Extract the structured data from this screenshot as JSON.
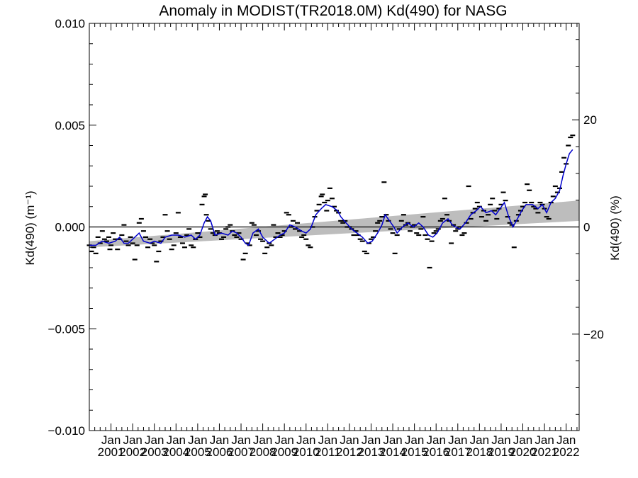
{
  "chart_data": {
    "type": "line",
    "title": "Anomaly in MODIST(TR2018.0M) Kd(490) for NASG",
    "ylabel": "Kd(490) (m⁻¹)",
    "y2label": "Kd(490) (%)",
    "ylim": [
      -0.01,
      0.01
    ],
    "y2lim": [
      -38,
      38
    ],
    "xlim": [
      2000.0,
      2022.6
    ],
    "grid": false,
    "y_ticks": [
      {
        "value": -0.01,
        "label": "−0.010"
      },
      {
        "value": -0.005,
        "label": "−0.005"
      },
      {
        "value": 0.0,
        "label": "0.000"
      },
      {
        "value": 0.005,
        "label": "0.005"
      },
      {
        "value": 0.01,
        "label": "0.010"
      }
    ],
    "y2_ticks": [
      {
        "value": -20,
        "label": "−20"
      },
      {
        "value": 0,
        "label": "0"
      },
      {
        "value": 20,
        "label": "20"
      }
    ],
    "x_ticks": [
      {
        "x": 2001.0,
        "month": "Jan",
        "year": "2001"
      },
      {
        "x": 2002.0,
        "month": "Jan",
        "year": "2002"
      },
      {
        "x": 2003.0,
        "month": "Jan",
        "year": "2003"
      },
      {
        "x": 2004.0,
        "month": "Jan",
        "year": "2004"
      },
      {
        "x": 2005.0,
        "month": "Jan",
        "year": "2005"
      },
      {
        "x": 2006.0,
        "month": "Jan",
        "year": "2006"
      },
      {
        "x": 2007.0,
        "month": "Jan",
        "year": "2007"
      },
      {
        "x": 2008.0,
        "month": "Jan",
        "year": "2008"
      },
      {
        "x": 2009.0,
        "month": "Jan",
        "year": "2009"
      },
      {
        "x": 2010.0,
        "month": "Jan",
        "year": "2010"
      },
      {
        "x": 2011.0,
        "month": "Jan",
        "year": "2011"
      },
      {
        "x": 2012.0,
        "month": "Jan",
        "year": "2012"
      },
      {
        "x": 2013.0,
        "month": "Jan",
        "year": "2013"
      },
      {
        "x": 2014.0,
        "month": "Jan",
        "year": "2014"
      },
      {
        "x": 2015.0,
        "month": "Jan",
        "year": "2015"
      },
      {
        "x": 2016.0,
        "month": "Jan",
        "year": "2016"
      },
      {
        "x": 2017.0,
        "month": "Jan",
        "year": "2017"
      },
      {
        "x": 2018.0,
        "month": "Jan",
        "year": "2018"
      },
      {
        "x": 2019.0,
        "month": "Jan",
        "year": "2019"
      },
      {
        "x": 2020.0,
        "month": "Jan",
        "year": "2020"
      },
      {
        "x": 2021.0,
        "month": "Jan",
        "year": "2021"
      },
      {
        "x": 2022.0,
        "month": "Jan",
        "year": "2022"
      }
    ],
    "trend_band": {
      "x": [
        2000.0,
        2022.6
      ],
      "upper": [
        -0.0007,
        0.0013
      ],
      "lower": [
        -0.001,
        0.0003
      ]
    },
    "smoothed_series": {
      "color": "#0000cc",
      "points": [
        [
          2000.0,
          -0.0009
        ],
        [
          2000.3,
          -0.0009
        ],
        [
          2000.6,
          -0.0007
        ],
        [
          2000.9,
          -0.0008
        ],
        [
          2001.2,
          -0.0007
        ],
        [
          2001.4,
          -0.0005
        ],
        [
          2001.6,
          -0.0008
        ],
        [
          2001.8,
          -0.0008
        ],
        [
          2002.1,
          -0.0005
        ],
        [
          2002.3,
          -0.0003
        ],
        [
          2002.5,
          -0.0007
        ],
        [
          2002.8,
          -0.0008
        ],
        [
          2003.0,
          -0.0007
        ],
        [
          2003.3,
          -0.0008
        ],
        [
          2003.5,
          -0.0005
        ],
        [
          2003.8,
          -0.0004
        ],
        [
          2004.1,
          -0.0004
        ],
        [
          2004.4,
          -0.0005
        ],
        [
          2004.7,
          -0.0004
        ],
        [
          2004.9,
          -0.0006
        ],
        [
          2005.1,
          -0.0004
        ],
        [
          2005.3,
          0.0002
        ],
        [
          2005.45,
          0.0005
        ],
        [
          2005.6,
          0.0003
        ],
        [
          2005.8,
          -0.0004
        ],
        [
          2006.1,
          -0.0003
        ],
        [
          2006.4,
          -0.0004
        ],
        [
          2006.6,
          -0.0002
        ],
        [
          2006.8,
          -0.0003
        ],
        [
          2007.0,
          -0.0005
        ],
        [
          2007.2,
          -0.0008
        ],
        [
          2007.35,
          -0.0009
        ],
        [
          2007.55,
          -0.0003
        ],
        [
          2007.8,
          -0.0001
        ],
        [
          2008.0,
          -0.0005
        ],
        [
          2008.3,
          -0.0008
        ],
        [
          2008.55,
          -0.0006
        ],
        [
          2008.8,
          -0.0004
        ],
        [
          2009.0,
          -0.0003
        ],
        [
          2009.25,
          0.0001
        ],
        [
          2009.5,
          0.0
        ],
        [
          2009.8,
          -0.0002
        ],
        [
          2010.0,
          -0.0003
        ],
        [
          2010.2,
          -0.0001
        ],
        [
          2010.45,
          0.0006
        ],
        [
          2010.7,
          0.0009
        ],
        [
          2010.9,
          0.0011
        ],
        [
          2011.2,
          0.001
        ],
        [
          2011.45,
          0.0008
        ],
        [
          2011.6,
          0.0005
        ],
        [
          2011.85,
          0.0002
        ],
        [
          2012.1,
          -0.0001
        ],
        [
          2012.35,
          -0.0003
        ],
        [
          2012.6,
          -0.0005
        ],
        [
          2012.85,
          -0.0008
        ],
        [
          2013.05,
          -0.0007
        ],
        [
          2013.3,
          -0.0003
        ],
        [
          2013.5,
          0.0001
        ],
        [
          2013.65,
          0.0006
        ],
        [
          2013.85,
          0.0003
        ],
        [
          2014.05,
          0.0
        ],
        [
          2014.2,
          -0.0003
        ],
        [
          2014.45,
          0.0
        ],
        [
          2014.7,
          0.0002
        ],
        [
          2014.95,
          0.0
        ],
        [
          2015.2,
          0.0002
        ],
        [
          2015.4,
          0.0
        ],
        [
          2015.65,
          -0.0004
        ],
        [
          2015.85,
          -0.0005
        ],
        [
          2016.05,
          -0.0003
        ],
        [
          2016.3,
          0.0002
        ],
        [
          2016.55,
          0.0004
        ],
        [
          2016.75,
          0.0001
        ],
        [
          2016.9,
          0.0
        ],
        [
          2017.1,
          -0.0001
        ],
        [
          2017.35,
          0.0002
        ],
        [
          2017.6,
          0.0006
        ],
        [
          2017.85,
          0.0008
        ],
        [
          2018.05,
          0.001
        ],
        [
          2018.3,
          0.0007
        ],
        [
          2018.55,
          0.0008
        ],
        [
          2018.75,
          0.0006
        ],
        [
          2018.95,
          0.0009
        ],
        [
          2019.15,
          0.0012
        ],
        [
          2019.35,
          0.0005
        ],
        [
          2019.55,
          0.0
        ],
        [
          2019.7,
          0.0003
        ],
        [
          2019.95,
          0.0008
        ],
        [
          2020.15,
          0.0011
        ],
        [
          2020.45,
          0.0011
        ],
        [
          2020.7,
          0.0009
        ],
        [
          2020.9,
          0.0011
        ],
        [
          2021.1,
          0.0007
        ],
        [
          2021.3,
          0.0012
        ],
        [
          2021.5,
          0.0014
        ],
        [
          2021.7,
          0.0018
        ],
        [
          2021.85,
          0.0025
        ],
        [
          2022.0,
          0.0031
        ],
        [
          2022.15,
          0.0036
        ],
        [
          2022.3,
          0.0038
        ]
      ]
    },
    "monthly_points": [
      [
        2000.0,
        -0.0009
      ],
      [
        2000.1,
        -0.0012
      ],
      [
        2000.2,
        -0.001
      ],
      [
        2000.3,
        -0.0013
      ],
      [
        2000.4,
        -0.0005
      ],
      [
        2000.5,
        -0.0008
      ],
      [
        2000.6,
        -0.0002
      ],
      [
        2000.7,
        -0.0006
      ],
      [
        2000.8,
        -0.0007
      ],
      [
        2000.9,
        -0.0005
      ],
      [
        2000.95,
        -0.0011
      ],
      [
        2001.0,
        -0.0009
      ],
      [
        2001.1,
        -0.0003
      ],
      [
        2001.2,
        -0.0006
      ],
      [
        2001.3,
        -0.0011
      ],
      [
        2001.4,
        -0.0006
      ],
      [
        2001.5,
        -0.0004
      ],
      [
        2001.6,
        0.0001
      ],
      [
        2001.7,
        -0.0007
      ],
      [
        2001.8,
        -0.0009
      ],
      [
        2001.9,
        -0.0005
      ],
      [
        2002.0,
        -0.0008
      ],
      [
        2002.1,
        -0.0016
      ],
      [
        2002.2,
        -0.0009
      ],
      [
        2002.3,
        0.0002
      ],
      [
        2002.4,
        0.0004
      ],
      [
        2002.5,
        -0.0002
      ],
      [
        2002.6,
        -0.0005
      ],
      [
        2002.7,
        -0.001
      ],
      [
        2002.8,
        -0.0006
      ],
      [
        2002.9,
        -0.0008
      ],
      [
        2003.0,
        -0.0009
      ],
      [
        2003.1,
        -0.0017
      ],
      [
        2003.2,
        -0.0012
      ],
      [
        2003.3,
        -0.0007
      ],
      [
        2003.4,
        -0.0005
      ],
      [
        2003.5,
        0.0006
      ],
      [
        2003.6,
        -0.0002
      ],
      [
        2003.7,
        -0.0006
      ],
      [
        2003.8,
        -0.0011
      ],
      [
        2003.9,
        -0.0009
      ],
      [
        2004.0,
        -0.0003
      ],
      [
        2004.1,
        0.0007
      ],
      [
        2004.2,
        -0.0005
      ],
      [
        2004.3,
        -0.0008
      ],
      [
        2004.4,
        -0.001
      ],
      [
        2004.5,
        -0.0004
      ],
      [
        2004.6,
        -0.0001
      ],
      [
        2004.7,
        -0.0009
      ],
      [
        2004.8,
        -0.001
      ],
      [
        2004.9,
        -0.0006
      ],
      [
        2005.0,
        -0.0003
      ],
      [
        2005.1,
        -0.0005
      ],
      [
        2005.2,
        0.0011
      ],
      [
        2005.3,
        0.0015
      ],
      [
        2005.35,
        0.0016
      ],
      [
        2005.4,
        0.0006
      ],
      [
        2005.5,
        0.0003
      ],
      [
        2005.6,
        -0.0001
      ],
      [
        2005.7,
        -0.0003
      ],
      [
        2005.8,
        -0.0004
      ],
      [
        2005.9,
        -0.0002
      ],
      [
        2006.0,
        -0.0003
      ],
      [
        2006.1,
        -0.0006
      ],
      [
        2006.2,
        -0.0005
      ],
      [
        2006.3,
        -0.0001
      ],
      [
        2006.4,
        0.0
      ],
      [
        2006.5,
        0.0001
      ],
      [
        2006.6,
        -0.0002
      ],
      [
        2006.7,
        -0.0004
      ],
      [
        2006.8,
        -0.0005
      ],
      [
        2006.9,
        -0.0003
      ],
      [
        2007.0,
        -0.0006
      ],
      [
        2007.1,
        -0.0016
      ],
      [
        2007.2,
        -0.0013
      ],
      [
        2007.3,
        -0.0008
      ],
      [
        2007.4,
        -0.0009
      ],
      [
        2007.5,
        0.0002
      ],
      [
        2007.6,
        0.0001
      ],
      [
        2007.7,
        -0.0004
      ],
      [
        2007.8,
        -0.0002
      ],
      [
        2007.9,
        -0.0006
      ],
      [
        2008.0,
        -0.0007
      ],
      [
        2008.1,
        -0.0013
      ],
      [
        2008.2,
        -0.001
      ],
      [
        2008.3,
        -0.0008
      ],
      [
        2008.4,
        -0.0009
      ],
      [
        2008.5,
        0.0001
      ],
      [
        2008.6,
        -0.0005
      ],
      [
        2008.7,
        -0.0003
      ],
      [
        2008.8,
        -0.0005
      ],
      [
        2008.9,
        -0.0004
      ],
      [
        2009.0,
        -0.0002
      ],
      [
        2009.1,
        0.0007
      ],
      [
        2009.2,
        0.0006
      ],
      [
        2009.3,
        0.0
      ],
      [
        2009.4,
        0.0003
      ],
      [
        2009.5,
        -0.0001
      ],
      [
        2009.6,
        0.0002
      ],
      [
        2009.7,
        -0.0002
      ],
      [
        2009.8,
        -0.0005
      ],
      [
        2009.9,
        -0.0004
      ],
      [
        2010.0,
        -0.0006
      ],
      [
        2010.1,
        -0.0009
      ],
      [
        2010.2,
        -0.001
      ],
      [
        2010.3,
        0.0
      ],
      [
        2010.4,
        0.0005
      ],
      [
        2010.5,
        0.0008
      ],
      [
        2010.6,
        0.0011
      ],
      [
        2010.7,
        0.0015
      ],
      [
        2010.75,
        0.0016
      ],
      [
        2010.85,
        0.0012
      ],
      [
        2010.95,
        0.0008
      ],
      [
        2011.0,
        0.0013
      ],
      [
        2011.1,
        0.0019
      ],
      [
        2011.2,
        0.0014
      ],
      [
        2011.3,
        0.001
      ],
      [
        2011.4,
        0.0008
      ],
      [
        2011.5,
        0.0007
      ],
      [
        2011.6,
        0.0003
      ],
      [
        2011.7,
        0.0002
      ],
      [
        2011.8,
        0.0003
      ],
      [
        2011.9,
        0.0
      ],
      [
        2012.0,
        0.0
      ],
      [
        2012.1,
        -0.0001
      ],
      [
        2012.2,
        -0.0004
      ],
      [
        2012.3,
        -0.0002
      ],
      [
        2012.4,
        -0.0004
      ],
      [
        2012.5,
        -0.0006
      ],
      [
        2012.6,
        -0.0007
      ],
      [
        2012.7,
        -0.0012
      ],
      [
        2012.8,
        -0.0013
      ],
      [
        2012.9,
        -0.0008
      ],
      [
        2013.0,
        -0.0006
      ],
      [
        2013.1,
        -0.0005
      ],
      [
        2013.2,
        -0.0002
      ],
      [
        2013.3,
        0.0002
      ],
      [
        2013.4,
        0.0003
      ],
      [
        2013.5,
        0.0005
      ],
      [
        2013.6,
        0.0022
      ],
      [
        2013.7,
        0.0006
      ],
      [
        2013.8,
        0.0003
      ],
      [
        2013.9,
        -0.0001
      ],
      [
        2014.0,
        -0.0003
      ],
      [
        2014.1,
        -0.0013
      ],
      [
        2014.2,
        -0.0004
      ],
      [
        2014.3,
        -0.0001
      ],
      [
        2014.4,
        0.0003
      ],
      [
        2014.5,
        0.0006
      ],
      [
        2014.6,
        0.0001
      ],
      [
        2014.7,
        0.0002
      ],
      [
        2014.8,
        -0.0002
      ],
      [
        2014.9,
        0.0
      ],
      [
        2015.0,
        0.0001
      ],
      [
        2015.1,
        -0.0003
      ],
      [
        2015.2,
        -0.0004
      ],
      [
        2015.3,
        -0.0001
      ],
      [
        2015.4,
        0.0005
      ],
      [
        2015.5,
        -0.0004
      ],
      [
        2015.6,
        -0.0006
      ],
      [
        2015.7,
        -0.002
      ],
      [
        2015.8,
        -0.0007
      ],
      [
        2015.9,
        -0.0003
      ],
      [
        2016.0,
        -0.0002
      ],
      [
        2016.1,
        -0.0001
      ],
      [
        2016.2,
        0.0003
      ],
      [
        2016.3,
        0.0004
      ],
      [
        2016.4,
        0.0014
      ],
      [
        2016.5,
        0.0006
      ],
      [
        2016.6,
        0.0003
      ],
      [
        2016.7,
        -0.0008
      ],
      [
        2016.8,
        0.0001
      ],
      [
        2016.9,
        -0.0002
      ],
      [
        2017.0,
        -0.0001
      ],
      [
        2017.1,
        0.0
      ],
      [
        2017.2,
        -0.0004
      ],
      [
        2017.3,
        -0.0003
      ],
      [
        2017.4,
        0.0002
      ],
      [
        2017.5,
        0.002
      ],
      [
        2017.6,
        0.0004
      ],
      [
        2017.7,
        0.0007
      ],
      [
        2017.8,
        0.0009
      ],
      [
        2017.9,
        0.0012
      ],
      [
        2018.0,
        0.001
      ],
      [
        2018.1,
        0.0005
      ],
      [
        2018.2,
        0.0008
      ],
      [
        2018.3,
        0.0003
      ],
      [
        2018.4,
        0.0006
      ],
      [
        2018.5,
        0.0011
      ],
      [
        2018.6,
        0.0014
      ],
      [
        2018.7,
        0.0008
      ],
      [
        2018.8,
        0.0004
      ],
      [
        2018.9,
        0.0009
      ],
      [
        2019.0,
        0.0011
      ],
      [
        2019.1,
        0.0017
      ],
      [
        2019.2,
        0.0013
      ],
      [
        2019.3,
        0.0005
      ],
      [
        2019.4,
        0.0002
      ],
      [
        2019.5,
        0.0001
      ],
      [
        2019.6,
        -0.001
      ],
      [
        2019.7,
        0.0003
      ],
      [
        2019.8,
        0.0006
      ],
      [
        2019.9,
        0.0008
      ],
      [
        2020.0,
        0.001
      ],
      [
        2020.1,
        0.0012
      ],
      [
        2020.2,
        0.0021
      ],
      [
        2020.3,
        0.0018
      ],
      [
        2020.4,
        0.0012
      ],
      [
        2020.5,
        0.001
      ],
      [
        2020.6,
        0.0009
      ],
      [
        2020.7,
        0.0007
      ],
      [
        2020.8,
        0.0012
      ],
      [
        2020.9,
        0.0011
      ],
      [
        2021.0,
        0.0009
      ],
      [
        2021.1,
        0.0005
      ],
      [
        2021.2,
        0.0004
      ],
      [
        2021.3,
        0.0012
      ],
      [
        2021.4,
        0.0015
      ],
      [
        2021.5,
        0.002
      ],
      [
        2021.6,
        0.0017
      ],
      [
        2021.7,
        0.0019
      ],
      [
        2021.8,
        0.0027
      ],
      [
        2021.9,
        0.0034
      ],
      [
        2022.0,
        0.0031
      ],
      [
        2022.1,
        0.004
      ],
      [
        2022.2,
        0.0044
      ],
      [
        2022.3,
        0.0045
      ]
    ]
  }
}
